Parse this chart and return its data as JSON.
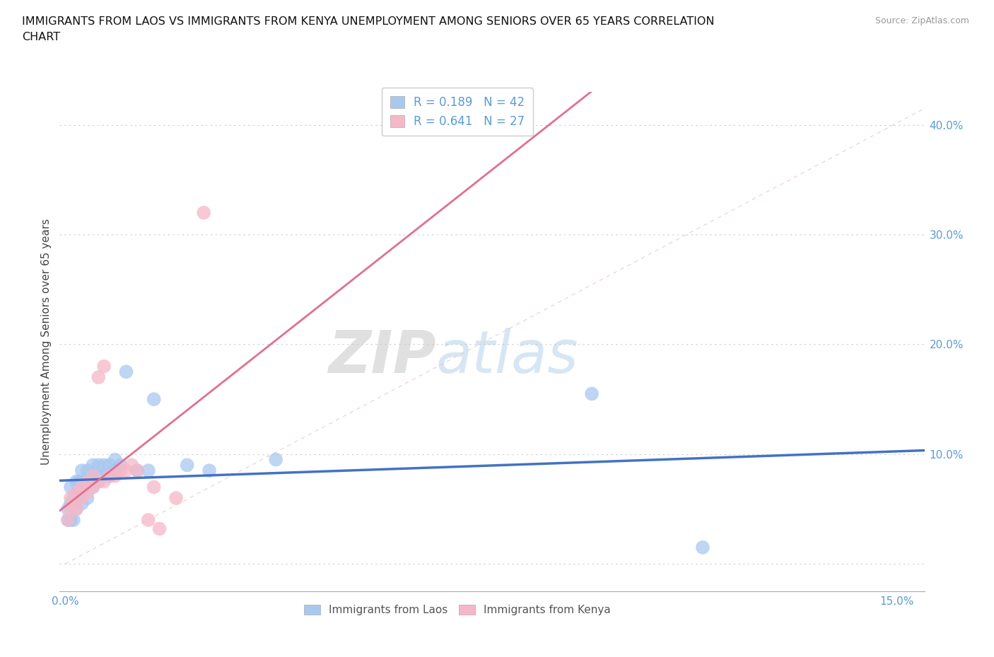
{
  "title": "IMMIGRANTS FROM LAOS VS IMMIGRANTS FROM KENYA UNEMPLOYMENT AMONG SENIORS OVER 65 YEARS CORRELATION\nCHART",
  "source": "Source: ZipAtlas.com",
  "ylabel_label": "Unemployment Among Seniors over 65 years",
  "x_ticks": [
    0.0,
    0.03,
    0.06,
    0.09,
    0.12,
    0.15
  ],
  "x_tick_labels": [
    "0.0%",
    "",
    "",
    "",
    "",
    "15.0%"
  ],
  "y_ticks": [
    0.0,
    0.1,
    0.2,
    0.3,
    0.4
  ],
  "y_tick_labels": [
    "",
    "10.0%",
    "20.0%",
    "30.0%",
    "40.0%"
  ],
  "xlim": [
    -0.001,
    0.155
  ],
  "ylim": [
    -0.025,
    0.43
  ],
  "laos_color": "#a8c8f0",
  "kenya_color": "#f5b8c8",
  "laos_R": 0.189,
  "laos_N": 42,
  "kenya_R": 0.641,
  "kenya_N": 27,
  "laos_x": [
    0.0005,
    0.0005,
    0.001,
    0.001,
    0.001,
    0.0015,
    0.0015,
    0.002,
    0.002,
    0.002,
    0.0025,
    0.0025,
    0.003,
    0.003,
    0.003,
    0.003,
    0.0035,
    0.004,
    0.004,
    0.004,
    0.005,
    0.005,
    0.005,
    0.006,
    0.006,
    0.006,
    0.007,
    0.007,
    0.008,
    0.008,
    0.009,
    0.009,
    0.01,
    0.011,
    0.013,
    0.015,
    0.016,
    0.022,
    0.026,
    0.038,
    0.095,
    0.115
  ],
  "laos_y": [
    0.04,
    0.05,
    0.04,
    0.055,
    0.07,
    0.04,
    0.06,
    0.05,
    0.065,
    0.075,
    0.06,
    0.075,
    0.055,
    0.065,
    0.075,
    0.085,
    0.07,
    0.06,
    0.075,
    0.085,
    0.07,
    0.08,
    0.09,
    0.075,
    0.08,
    0.09,
    0.08,
    0.09,
    0.08,
    0.09,
    0.085,
    0.095,
    0.09,
    0.175,
    0.085,
    0.085,
    0.15,
    0.09,
    0.085,
    0.095,
    0.155,
    0.015
  ],
  "kenya_x": [
    0.0005,
    0.001,
    0.001,
    0.0015,
    0.002,
    0.002,
    0.003,
    0.003,
    0.004,
    0.004,
    0.005,
    0.005,
    0.006,
    0.006,
    0.007,
    0.007,
    0.008,
    0.009,
    0.01,
    0.011,
    0.012,
    0.013,
    0.015,
    0.016,
    0.017,
    0.02,
    0.025
  ],
  "kenya_y": [
    0.04,
    0.05,
    0.06,
    0.055,
    0.05,
    0.065,
    0.06,
    0.07,
    0.065,
    0.075,
    0.07,
    0.08,
    0.075,
    0.17,
    0.075,
    0.18,
    0.08,
    0.08,
    0.085,
    0.085,
    0.09,
    0.085,
    0.04,
    0.07,
    0.032,
    0.06,
    0.32
  ],
  "bg_color": "#ffffff",
  "grid_color": "#cccccc",
  "ref_line_color": "#e8c8c8",
  "trend_laos_color": "#4472c4",
  "trend_kenya_color": "#e07090",
  "text_color": "#5b9bd5",
  "watermark_zip": "ZIP",
  "watermark_atlas": "atlas"
}
